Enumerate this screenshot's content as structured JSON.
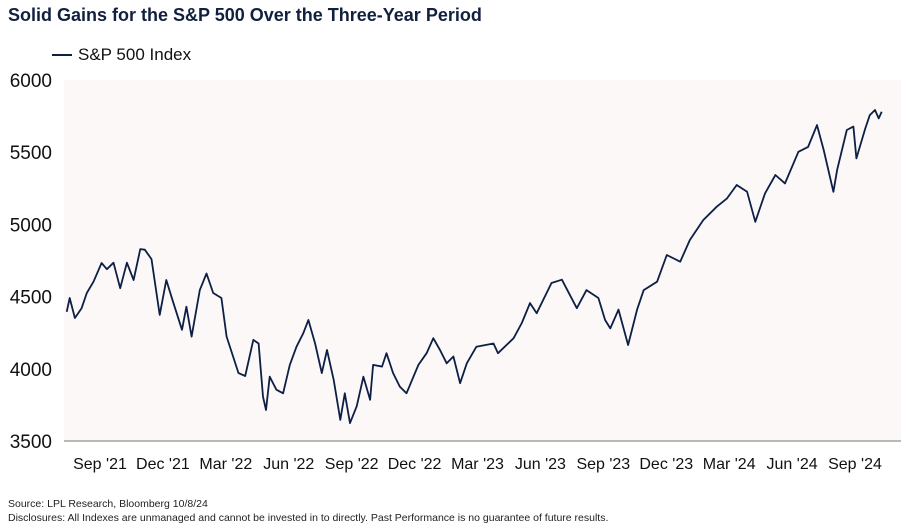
{
  "chart_data": {
    "type": "line",
    "title": "Solid Gains for the S&P 500 Over the Three-Year Period",
    "xlabel": "",
    "ylabel": "",
    "ylim": [
      3500,
      6000
    ],
    "yticks": [
      "6000",
      "5500",
      "5000",
      "4500",
      "4000",
      "3500"
    ],
    "xticks": [
      "Sep '21",
      "Dec '21",
      "Mar '22",
      "Jun '22",
      "Sep '22",
      "Dec '22",
      "Mar '23",
      "Jun '23",
      "Sep '23",
      "Dec '23",
      "Mar '24",
      "Jun '24",
      "Sep '24"
    ],
    "xlim": [
      "2021-10-08",
      "2024-10-08"
    ],
    "grid": false,
    "legend_position": "top-left",
    "plot_background": "#fbf8f7",
    "series": [
      {
        "name": "S&P 500 Index",
        "color": "#0d1f45",
        "x": [
          "2021-10-08",
          "2021-10-12",
          "2021-10-19",
          "2021-10-28",
          "2021-11-04",
          "2021-11-13",
          "2021-11-24",
          "2021-12-01",
          "2021-12-10",
          "2021-12-19",
          "2021-12-28",
          "2022-01-06",
          "2022-01-15",
          "2022-01-21",
          "2022-01-30",
          "2022-02-10",
          "2022-02-19",
          "2022-02-28",
          "2022-03-12",
          "2022-03-18",
          "2022-03-25",
          "2022-04-05",
          "2022-04-14",
          "2022-04-23",
          "2022-05-04",
          "2022-05-11",
          "2022-05-27",
          "2022-06-05",
          "2022-06-16",
          "2022-06-23",
          "2022-06-29",
          "2022-07-03",
          "2022-07-08",
          "2022-07-17",
          "2022-07-26",
          "2022-08-04",
          "2022-08-13",
          "2022-08-22",
          "2022-08-29",
          "2022-09-07",
          "2022-09-16",
          "2022-09-23",
          "2022-10-02",
          "2022-10-11",
          "2022-10-17",
          "2022-10-24",
          "2022-11-02",
          "2022-11-11",
          "2022-11-20",
          "2022-11-24",
          "2022-12-06",
          "2022-12-12",
          "2022-12-21",
          "2022-12-30",
          "2023-01-08",
          "2023-01-24",
          "2023-02-04",
          "2023-02-13",
          "2023-02-22",
          "2023-03-03",
          "2023-03-12",
          "2023-03-21",
          "2023-03-30",
          "2023-04-12",
          "2023-05-05",
          "2023-05-11",
          "2023-06-01",
          "2023-06-12",
          "2023-06-23",
          "2023-07-02",
          "2023-07-22",
          "2023-08-05",
          "2023-08-25",
          "2023-09-07",
          "2023-09-23",
          "2023-10-02",
          "2023-10-09",
          "2023-10-20",
          "2023-11-02",
          "2023-11-14",
          "2023-11-23",
          "2023-12-11",
          "2023-12-24",
          "2024-01-11",
          "2024-01-24",
          "2024-02-11",
          "2024-02-29",
          "2024-03-14",
          "2024-03-27",
          "2024-04-10",
          "2024-04-21",
          "2024-05-04",
          "2024-05-18",
          "2024-05-31",
          "2024-06-18",
          "2024-07-01",
          "2024-07-13",
          "2024-07-22",
          "2024-08-04",
          "2024-08-09",
          "2024-08-22",
          "2024-08-31",
          "2024-09-04",
          "2024-09-16",
          "2024-09-22",
          "2024-09-29",
          "2024-10-04",
          "2024-10-08"
        ],
        "values": [
          4395,
          4490,
          4352,
          4420,
          4525,
          4603,
          4733,
          4690,
          4735,
          4558,
          4735,
          4615,
          4829,
          4825,
          4760,
          4373,
          4615,
          4465,
          4270,
          4430,
          4223,
          4545,
          4660,
          4525,
          4490,
          4223,
          3970,
          3950,
          4200,
          4175,
          3807,
          3715,
          3945,
          3855,
          3830,
          4027,
          4153,
          4245,
          4338,
          4175,
          3970,
          4130,
          3923,
          3646,
          3830,
          3624,
          3740,
          3945,
          3785,
          4027,
          4015,
          4108,
          3970,
          3877,
          3830,
          4027,
          4108,
          4212,
          4130,
          4038,
          4085,
          3900,
          4038,
          4153,
          4175,
          4108,
          4212,
          4317,
          4455,
          4385,
          4594,
          4617,
          4420,
          4545,
          4490,
          4338,
          4280,
          4410,
          4165,
          4410,
          4545,
          4603,
          4788,
          4742,
          4891,
          5030,
          5122,
          5180,
          5273,
          5226,
          5018,
          5215,
          5342,
          5284,
          5503,
          5537,
          5688,
          5515,
          5226,
          5376,
          5654,
          5677,
          5457,
          5665,
          5757,
          5792,
          5734,
          5780
        ]
      }
    ]
  },
  "footer": {
    "source": "Source: LPL Research, Bloomberg 10/8/24",
    "disclosure": "Disclosures: All Indexes are unmanaged and cannot be invested in to directly. Past Performance is no guarantee of future results."
  }
}
